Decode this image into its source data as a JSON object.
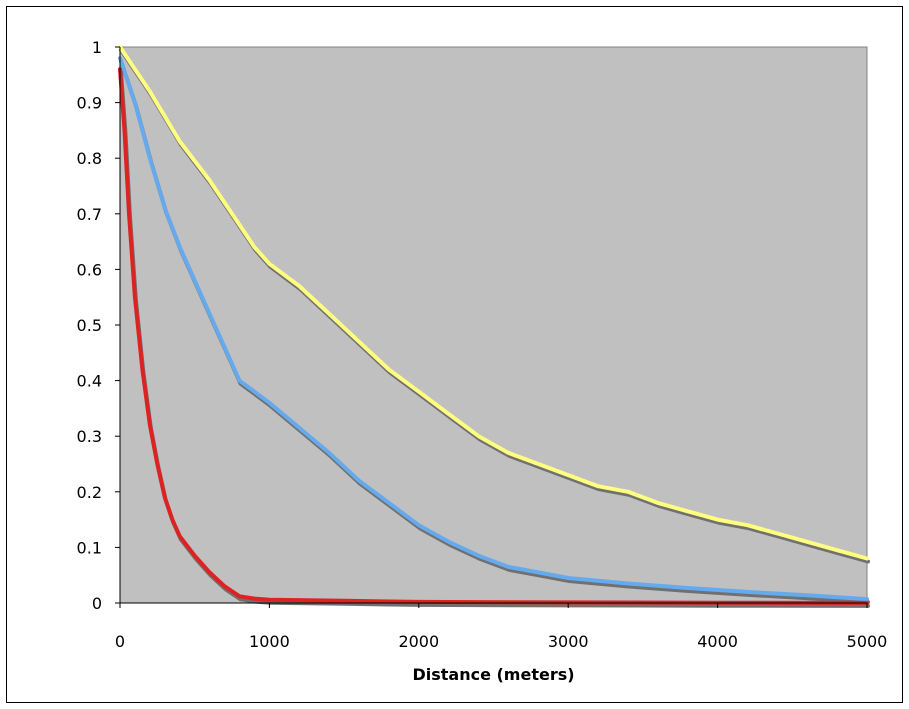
{
  "chart_data": {
    "type": "line",
    "title": "",
    "xlabel": "Distance (meters)",
    "ylabel": "",
    "xlim": [
      0,
      5000
    ],
    "ylim": [
      0,
      1
    ],
    "grid": false,
    "legend": "none",
    "plot_background": "#c0c0c0",
    "x_ticks": [
      0,
      1000,
      2000,
      3000,
      4000,
      5000
    ],
    "x_tick_labels": [
      "0",
      "1000",
      "2000",
      "3000",
      "4000",
      "5000"
    ],
    "y_ticks": [
      0,
      0.1,
      0.2,
      0.3,
      0.4,
      0.5,
      0.6,
      0.7,
      0.8,
      0.9,
      1
    ],
    "y_tick_labels": [
      "0",
      "0.1",
      "0.2",
      "0.3",
      "0.4",
      "0.5",
      "0.6",
      "0.7",
      "0.8",
      "0.9",
      "1"
    ],
    "series": [
      {
        "color": "#ffff80",
        "x": [
          0,
          200,
          400,
          600,
          800,
          900,
          1000,
          1200,
          1400,
          1600,
          1800,
          2000,
          2200,
          2400,
          2600,
          2800,
          3000,
          3200,
          3400,
          3600,
          3800,
          4000,
          4200,
          4400,
          4600,
          4800,
          5000
        ],
        "y": [
          1.0,
          0.92,
          0.83,
          0.76,
          0.68,
          0.64,
          0.61,
          0.57,
          0.52,
          0.47,
          0.42,
          0.38,
          0.34,
          0.3,
          0.27,
          0.25,
          0.23,
          0.21,
          0.2,
          0.18,
          0.165,
          0.15,
          0.14,
          0.125,
          0.11,
          0.095,
          0.08
        ]
      },
      {
        "color": "#66aaee",
        "x": [
          0,
          100,
          200,
          300,
          400,
          500,
          600,
          700,
          800,
          900,
          1000,
          1200,
          1400,
          1600,
          1800,
          2000,
          2200,
          2400,
          2600,
          2800,
          3000,
          3400,
          3800,
          4200,
          4600,
          5000
        ],
        "y": [
          0.98,
          0.9,
          0.8,
          0.71,
          0.64,
          0.58,
          0.52,
          0.46,
          0.4,
          0.38,
          0.36,
          0.315,
          0.27,
          0.22,
          0.18,
          0.14,
          0.11,
          0.085,
          0.065,
          0.055,
          0.045,
          0.035,
          0.027,
          0.02,
          0.014,
          0.007
        ]
      },
      {
        "color": "#dd2222",
        "x": [
          0,
          30,
          60,
          100,
          150,
          200,
          250,
          300,
          350,
          400,
          500,
          600,
          700,
          800,
          900,
          1000,
          1500,
          2000,
          3000,
          4000,
          5000
        ],
        "y": [
          0.96,
          0.85,
          0.7,
          0.55,
          0.42,
          0.32,
          0.25,
          0.19,
          0.15,
          0.12,
          0.085,
          0.055,
          0.03,
          0.012,
          0.008,
          0.006,
          0.004,
          0.002,
          0.001,
          0.0005,
          0.0002
        ]
      }
    ]
  }
}
